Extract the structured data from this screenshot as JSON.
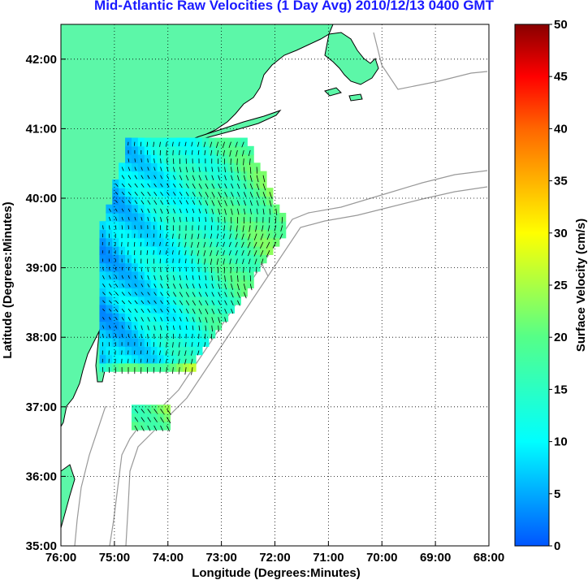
{
  "title": "Mid-Atlantic Raw Velocities (1 Day Avg) 2010/12/13 0400 GMT",
  "colors": {
    "land": "#5cf7a8",
    "coast_outline": "#000000",
    "bathymetry": "#999999",
    "grid": "#000000",
    "title": "#1a1aff"
  },
  "chart_data": {
    "type": "heatmap",
    "description_type": "map",
    "xlabel": "Longitude (Degrees:Minutes)",
    "ylabel": "Latitude (Degrees:Minutes)",
    "xlim": [
      -76,
      -68
    ],
    "ylim": [
      35,
      42.5
    ],
    "x_ticks": [
      {
        "value": -76,
        "label": "76:00"
      },
      {
        "value": -75,
        "label": "75:00"
      },
      {
        "value": -74,
        "label": "74:00"
      },
      {
        "value": -73,
        "label": "73:00"
      },
      {
        "value": -72,
        "label": "72:00"
      },
      {
        "value": -71,
        "label": "71:00"
      },
      {
        "value": -70,
        "label": "70:00"
      },
      {
        "value": -69,
        "label": "69:00"
      },
      {
        "value": -68,
        "label": "68:00"
      }
    ],
    "y_ticks": [
      {
        "value": 35,
        "label": "35:00"
      },
      {
        "value": 36,
        "label": "36:00"
      },
      {
        "value": 37,
        "label": "37:00"
      },
      {
        "value": 38,
        "label": "38:00"
      },
      {
        "value": 39,
        "label": "39:00"
      },
      {
        "value": 40,
        "label": "40:00"
      },
      {
        "value": 41,
        "label": "41:00"
      },
      {
        "value": 42,
        "label": "42:00"
      }
    ],
    "grid": true,
    "colorbar": {
      "label": "Surface Velocity (cm/s)",
      "range": [
        0,
        50
      ],
      "ticks": [
        {
          "value": 0,
          "label": "0"
        },
        {
          "value": 5,
          "label": "5"
        },
        {
          "value": 10,
          "label": "10"
        },
        {
          "value": 15,
          "label": "15"
        },
        {
          "value": 20,
          "label": "20"
        },
        {
          "value": 25,
          "label": "25"
        },
        {
          "value": 30,
          "label": "30"
        },
        {
          "value": 35,
          "label": "35"
        },
        {
          "value": 40,
          "label": "40"
        },
        {
          "value": 45,
          "label": "45"
        },
        {
          "value": 50,
          "label": "50"
        }
      ]
    }
  }
}
